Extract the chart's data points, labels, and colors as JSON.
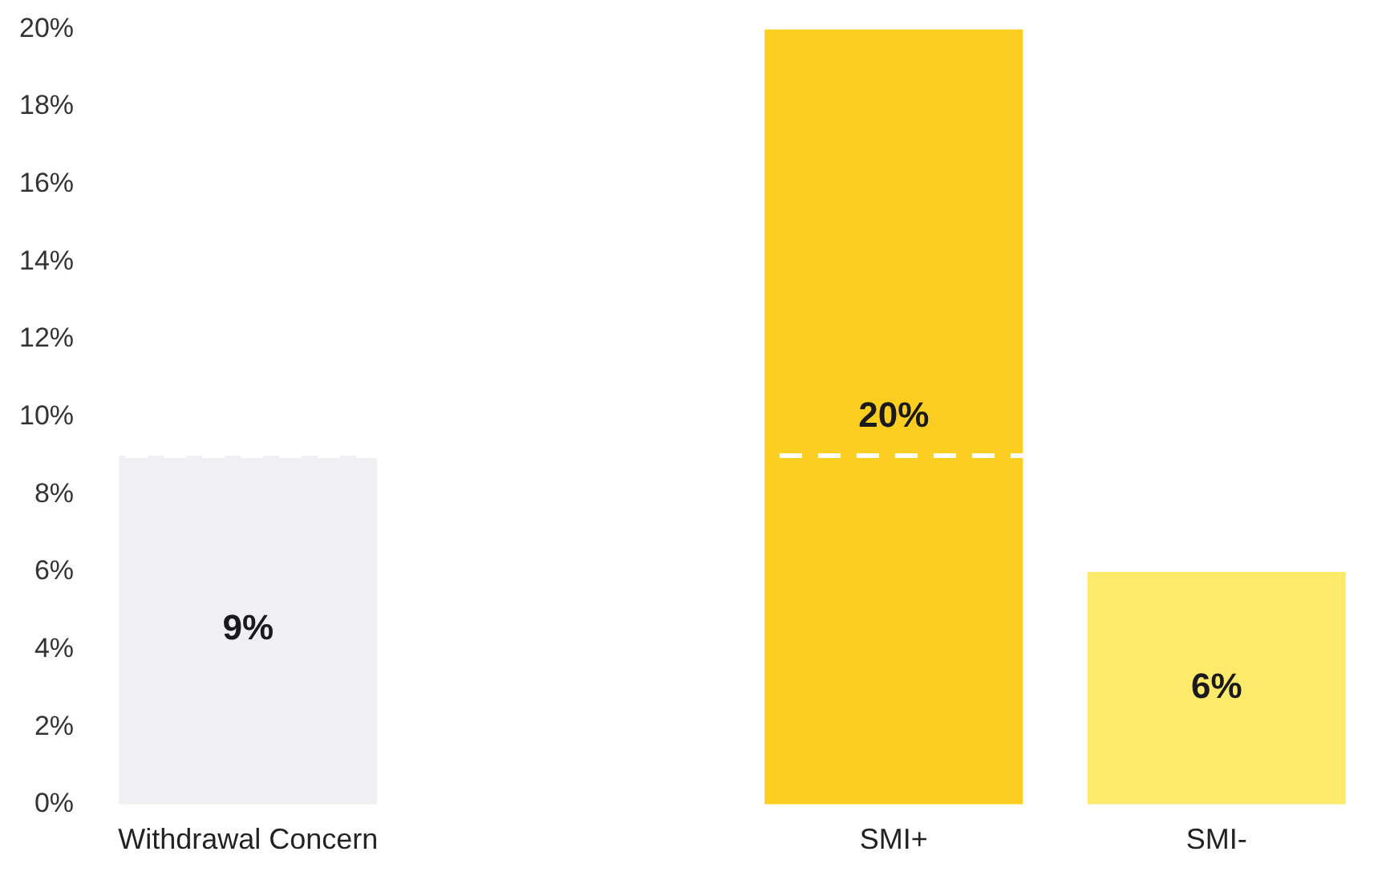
{
  "chart_data": {
    "type": "bar",
    "categories": [
      "Withdrawal Concern",
      null,
      "SMI+",
      "SMI-"
    ],
    "values": [
      9,
      null,
      20,
      6
    ],
    "colors": [
      "#efeff4",
      "#ffffff",
      "#fdcd1f",
      "#fde96a"
    ],
    "value_labels": [
      "9%",
      null,
      "20%",
      "6%"
    ],
    "ylim": [
      0,
      20
    ],
    "yticks": [
      {
        "value": 0,
        "label": "0%"
      },
      {
        "value": 2,
        "label": "2%"
      },
      {
        "value": 4,
        "label": "4%"
      },
      {
        "value": 6,
        "label": "6%"
      },
      {
        "value": 8,
        "label": "8%"
      },
      {
        "value": 10,
        "label": "10%"
      },
      {
        "value": 12,
        "label": "12%"
      },
      {
        "value": 14,
        "label": "14%"
      },
      {
        "value": 16,
        "label": "16%"
      },
      {
        "value": 18,
        "label": "18%"
      },
      {
        "value": 20,
        "label": "20%"
      }
    ],
    "ref_lines": [
      {
        "axis": "y",
        "value": 9,
        "color": "#ffffff",
        "line_style": "dashed"
      }
    ],
    "grid": false,
    "legend": false
  }
}
